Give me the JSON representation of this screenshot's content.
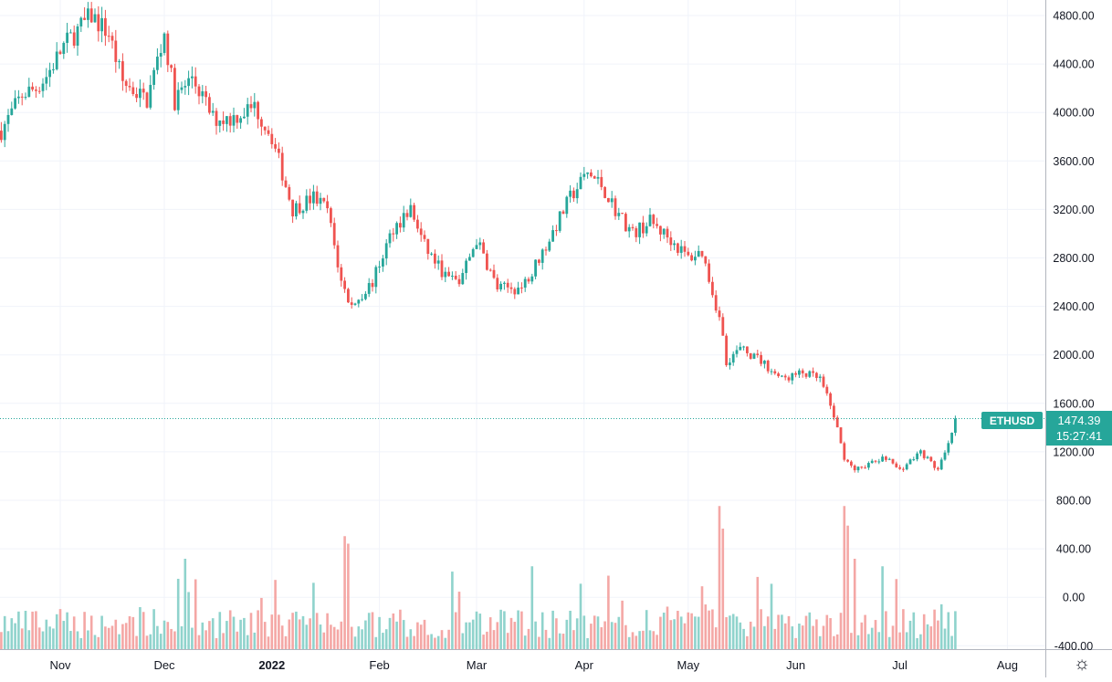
{
  "chart_data": {
    "type": "candlestick",
    "symbol": "ETHUSD",
    "last_price": "1474.39",
    "countdown": "15:27:41",
    "y_ticks": [
      "4800.00",
      "4400.00",
      "4000.00",
      "3600.00",
      "3200.00",
      "2800.00",
      "2400.00",
      "2000.00",
      "1600.00",
      "1200.00",
      "800.00",
      "400.00",
      "0.00",
      "-400.00"
    ],
    "x_ticks": [
      {
        "label": "Nov",
        "bold": false
      },
      {
        "label": "Dec",
        "bold": false
      },
      {
        "label": "2022",
        "bold": true
      },
      {
        "label": "Feb",
        "bold": false
      },
      {
        "label": "Mar",
        "bold": false
      },
      {
        "label": "Apr",
        "bold": false
      },
      {
        "label": "May",
        "bold": false
      },
      {
        "label": "Jun",
        "bold": false
      },
      {
        "label": "Jul",
        "bold": false
      },
      {
        "label": "Aug",
        "bold": false
      }
    ],
    "ylim": [
      -400,
      4900
    ],
    "price_trend": [
      [
        "2021-10-15",
        3850
      ],
      [
        "2021-10-21",
        4150
      ],
      [
        "2021-10-25",
        4200
      ],
      [
        "2021-10-28",
        4300
      ],
      [
        "2021-11-02",
        4550
      ],
      [
        "2021-11-10",
        4800
      ],
      [
        "2021-11-15",
        4650
      ],
      [
        "2021-11-19",
        4250
      ],
      [
        "2021-11-26",
        4100
      ],
      [
        "2021-12-01",
        4650
      ],
      [
        "2021-12-04",
        4100
      ],
      [
        "2021-12-09",
        4300
      ],
      [
        "2021-12-15",
        3950
      ],
      [
        "2021-12-20",
        3950
      ],
      [
        "2021-12-27",
        4050
      ],
      [
        "2022-01-01",
        3800
      ],
      [
        "2022-01-07",
        3200
      ],
      [
        "2022-01-13",
        3300
      ],
      [
        "2022-01-17",
        3200
      ],
      [
        "2022-01-21",
        2600
      ],
      [
        "2022-01-24",
        2400
      ],
      [
        "2022-01-30",
        2600
      ],
      [
        "2022-02-05",
        3050
      ],
      [
        "2022-02-10",
        3200
      ],
      [
        "2022-02-14",
        2900
      ],
      [
        "2022-02-20",
        2650
      ],
      [
        "2022-02-24",
        2600
      ],
      [
        "2022-03-01",
        2950
      ],
      [
        "2022-03-07",
        2550
      ],
      [
        "2022-03-14",
        2550
      ],
      [
        "2022-03-21",
        2900
      ],
      [
        "2022-03-28",
        3300
      ],
      [
        "2022-04-02",
        3500
      ],
      [
        "2022-04-06",
        3400
      ],
      [
        "2022-04-10",
        3200
      ],
      [
        "2022-04-15",
        3000
      ],
      [
        "2022-04-20",
        3100
      ],
      [
        "2022-04-26",
        2950
      ],
      [
        "2022-05-01",
        2800
      ],
      [
        "2022-05-05",
        2850
      ],
      [
        "2022-05-10",
        2300
      ],
      [
        "2022-05-12",
        1950
      ],
      [
        "2022-05-16",
        2050
      ],
      [
        "2022-05-22",
        1950
      ],
      [
        "2022-05-28",
        1800
      ],
      [
        "2022-06-03",
        1850
      ],
      [
        "2022-06-08",
        1800
      ],
      [
        "2022-06-12",
        1500
      ],
      [
        "2022-06-15",
        1150
      ],
      [
        "2022-06-18",
        1050
      ],
      [
        "2022-06-22",
        1100
      ],
      [
        "2022-06-27",
        1150
      ],
      [
        "2022-07-01",
        1050
      ],
      [
        "2022-07-07",
        1200
      ],
      [
        "2022-07-12",
        1050
      ],
      [
        "2022-07-15",
        1250
      ],
      [
        "2022-07-17",
        1474
      ]
    ]
  }
}
